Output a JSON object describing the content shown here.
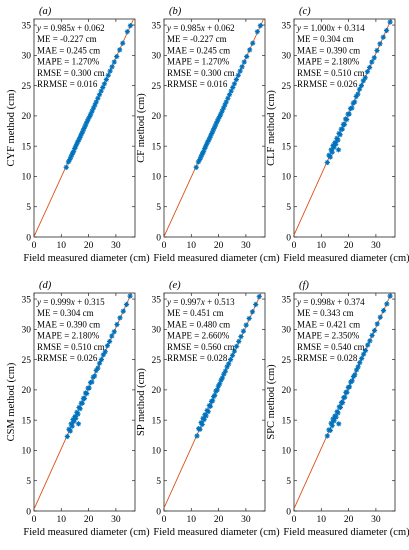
{
  "figure": {
    "axis_color": "#262626",
    "line_color": "#d95319",
    "marker_color": "#0072bd"
  },
  "chart_data": [
    {
      "type": "scatter",
      "panel_label": "(a)",
      "ylabel": "CYF method (cm)",
      "xlabel": "Field measured diameter (cm)",
      "xlim": [
        0,
        37
      ],
      "ylim": [
        0,
        36
      ],
      "xticks": [
        0,
        10,
        20,
        30
      ],
      "yticks": [
        0,
        5,
        10,
        15,
        20,
        25,
        30,
        35
      ],
      "fit": {
        "slope": 0.985,
        "intercept": 0.062
      },
      "stats": [
        "y = 0.985x + 0.062",
        "ME = -0.227 cm",
        "MAE = 0.245 cm",
        "MAPE = 1.270%",
        "RMSE = 0.300 cm",
        "RRMSE = 0.016"
      ],
      "points": [
        [
          11.8,
          11.5
        ],
        [
          12.6,
          12.4
        ],
        [
          13.1,
          12.8
        ],
        [
          13.5,
          13.2
        ],
        [
          13.9,
          13.6
        ],
        [
          14.2,
          13.9
        ],
        [
          14.5,
          14.1
        ],
        [
          14.9,
          14.6
        ],
        [
          15.2,
          14.9
        ],
        [
          15.6,
          15.3
        ],
        [
          16.0,
          15.7
        ],
        [
          16.4,
          16.0
        ],
        [
          16.8,
          16.4
        ],
        [
          17.1,
          16.7
        ],
        [
          17.5,
          17.1
        ],
        [
          17.9,
          17.5
        ],
        [
          18.3,
          17.9
        ],
        [
          18.7,
          18.3
        ],
        [
          19.1,
          18.7
        ],
        [
          19.5,
          19.1
        ],
        [
          19.9,
          19.5
        ],
        [
          20.4,
          19.9
        ],
        [
          20.8,
          20.3
        ],
        [
          21.3,
          20.8
        ],
        [
          21.8,
          21.3
        ],
        [
          22.3,
          21.8
        ],
        [
          22.8,
          22.3
        ],
        [
          23.4,
          22.9
        ],
        [
          24.0,
          23.5
        ],
        [
          24.6,
          24.1
        ],
        [
          25.2,
          24.7
        ],
        [
          25.8,
          25.3
        ],
        [
          26.5,
          26.0
        ],
        [
          27.2,
          26.7
        ],
        [
          27.9,
          27.4
        ],
        [
          28.6,
          28.1
        ],
        [
          29.4,
          28.9
        ],
        [
          30.3,
          29.8
        ],
        [
          31.4,
          30.9
        ],
        [
          32.5,
          32.0
        ],
        [
          34.2,
          33.9
        ],
        [
          35.3,
          34.9
        ]
      ]
    },
    {
      "type": "scatter",
      "panel_label": "(b)",
      "ylabel": "CF method (cm)",
      "xlabel": "Field measured diameter (cm)",
      "xlim": [
        0,
        37
      ],
      "ylim": [
        0,
        36
      ],
      "xticks": [
        0,
        10,
        20,
        30
      ],
      "yticks": [
        0,
        5,
        10,
        15,
        20,
        25,
        30,
        35
      ],
      "fit": {
        "slope": 0.985,
        "intercept": 0.062
      },
      "stats": [
        "y = 0.985x + 0.062",
        "ME = -0.227 cm",
        "MAE = 0.245 cm",
        "MAPE = 1.270%",
        "RMSE = 0.300 cm",
        "RRMSE = 0.016"
      ],
      "points": [
        [
          11.8,
          11.5
        ],
        [
          12.6,
          12.4
        ],
        [
          13.1,
          12.8
        ],
        [
          13.5,
          13.2
        ],
        [
          13.9,
          13.6
        ],
        [
          14.2,
          13.9
        ],
        [
          14.5,
          14.1
        ],
        [
          14.9,
          14.6
        ],
        [
          15.2,
          14.9
        ],
        [
          15.6,
          15.3
        ],
        [
          16.0,
          15.7
        ],
        [
          16.4,
          16.0
        ],
        [
          16.8,
          16.4
        ],
        [
          17.1,
          16.7
        ],
        [
          17.5,
          17.1
        ],
        [
          17.9,
          17.5
        ],
        [
          18.3,
          17.9
        ],
        [
          18.7,
          18.3
        ],
        [
          19.1,
          18.7
        ],
        [
          19.5,
          19.1
        ],
        [
          19.9,
          19.5
        ],
        [
          20.4,
          19.9
        ],
        [
          20.8,
          20.3
        ],
        [
          21.3,
          20.8
        ],
        [
          21.8,
          21.3
        ],
        [
          22.3,
          21.8
        ],
        [
          22.8,
          22.3
        ],
        [
          23.4,
          22.9
        ],
        [
          24.0,
          23.5
        ],
        [
          24.6,
          24.1
        ],
        [
          25.2,
          24.7
        ],
        [
          25.8,
          25.3
        ],
        [
          26.5,
          26.0
        ],
        [
          27.2,
          26.7
        ],
        [
          27.9,
          27.4
        ],
        [
          28.6,
          28.1
        ],
        [
          29.4,
          28.9
        ],
        [
          30.3,
          29.8
        ],
        [
          31.4,
          30.9
        ],
        [
          32.5,
          32.0
        ],
        [
          34.2,
          33.9
        ],
        [
          35.3,
          34.9
        ]
      ]
    },
    {
      "type": "scatter",
      "panel_label": "(c)",
      "ylabel": "CLF method (cm)",
      "xlabel": "Field measured diameter (cm)",
      "xlim": [
        0,
        37
      ],
      "ylim": [
        0,
        36
      ],
      "xticks": [
        0,
        10,
        20,
        30
      ],
      "yticks": [
        0,
        5,
        10,
        15,
        20,
        25,
        30,
        35
      ],
      "fit": {
        "slope": 1.0,
        "intercept": 0.314
      },
      "stats": [
        "y = 1.000x + 0.314",
        "ME = 0.304 cm",
        "MAE = 0.390 cm",
        "MAPE = 2.180%",
        "RMSE = 0.510 cm",
        "RRMSE = 0.026"
      ],
      "points": [
        [
          12.2,
          12.3
        ],
        [
          12.8,
          13.5
        ],
        [
          13.3,
          13.2
        ],
        [
          13.6,
          14.4
        ],
        [
          14.0,
          14.0
        ],
        [
          14.3,
          15.1
        ],
        [
          14.6,
          14.8
        ],
        [
          15.0,
          15.6
        ],
        [
          15.3,
          15.3
        ],
        [
          15.7,
          16.3
        ],
        [
          16.1,
          16.0
        ],
        [
          16.3,
          14.4
        ],
        [
          16.5,
          17.1
        ],
        [
          16.9,
          16.9
        ],
        [
          17.3,
          17.8
        ],
        [
          17.7,
          17.8
        ],
        [
          18.1,
          18.6
        ],
        [
          18.5,
          18.6
        ],
        [
          18.9,
          19.5
        ],
        [
          19.3,
          19.4
        ],
        [
          19.8,
          20.3
        ],
        [
          20.2,
          20.3
        ],
        [
          20.7,
          21.2
        ],
        [
          21.2,
          21.3
        ],
        [
          21.7,
          22.1
        ],
        [
          22.2,
          22.3
        ],
        [
          22.8,
          23.2
        ],
        [
          23.4,
          23.6
        ],
        [
          24.0,
          24.4
        ],
        [
          24.7,
          25.0
        ],
        [
          25.4,
          25.8
        ],
        [
          26.1,
          26.3
        ],
        [
          26.9,
          27.3
        ],
        [
          27.7,
          28.0
        ],
        [
          28.5,
          28.9
        ],
        [
          29.4,
          29.6
        ],
        [
          30.4,
          30.8
        ],
        [
          31.5,
          31.9
        ],
        [
          32.7,
          33.0
        ],
        [
          33.9,
          34.1
        ],
        [
          35.2,
          35.5
        ]
      ]
    },
    {
      "type": "scatter",
      "panel_label": "(d)",
      "ylabel": "CSM method (cm)",
      "xlabel": "Field measured diameter (cm)",
      "xlim": [
        0,
        37
      ],
      "ylim": [
        0,
        36
      ],
      "xticks": [
        0,
        10,
        20,
        30
      ],
      "yticks": [
        0,
        5,
        10,
        15,
        20,
        25,
        30,
        35
      ],
      "fit": {
        "slope": 0.999,
        "intercept": 0.315
      },
      "stats": [
        "y = 0.999x + 0.315",
        "ME = 0.304 cm",
        "MAE = 0.390 cm",
        "MAPE = 2.180%",
        "RMSE = 0.510 cm",
        "RRMSE = 0.026"
      ],
      "points": [
        [
          12.2,
          12.3
        ],
        [
          12.8,
          13.5
        ],
        [
          13.3,
          13.2
        ],
        [
          13.6,
          14.4
        ],
        [
          14.0,
          14.0
        ],
        [
          14.3,
          15.1
        ],
        [
          14.6,
          14.8
        ],
        [
          15.0,
          15.6
        ],
        [
          15.3,
          15.3
        ],
        [
          15.7,
          16.3
        ],
        [
          16.1,
          16.0
        ],
        [
          16.3,
          14.4
        ],
        [
          16.5,
          17.1
        ],
        [
          16.9,
          16.9
        ],
        [
          17.3,
          17.8
        ],
        [
          17.7,
          17.8
        ],
        [
          18.1,
          18.6
        ],
        [
          18.5,
          18.6
        ],
        [
          18.9,
          19.5
        ],
        [
          19.3,
          19.4
        ],
        [
          19.8,
          20.3
        ],
        [
          20.2,
          20.3
        ],
        [
          20.7,
          21.2
        ],
        [
          21.2,
          21.3
        ],
        [
          21.7,
          22.1
        ],
        [
          22.2,
          22.3
        ],
        [
          22.8,
          23.2
        ],
        [
          23.4,
          23.6
        ],
        [
          24.0,
          24.4
        ],
        [
          24.7,
          25.0
        ],
        [
          25.4,
          25.8
        ],
        [
          26.1,
          26.3
        ],
        [
          26.9,
          27.3
        ],
        [
          27.7,
          28.0
        ],
        [
          28.5,
          28.9
        ],
        [
          29.4,
          29.6
        ],
        [
          30.4,
          30.8
        ],
        [
          31.5,
          31.9
        ],
        [
          32.7,
          33.0
        ],
        [
          33.9,
          34.1
        ],
        [
          35.2,
          35.5
        ]
      ]
    },
    {
      "type": "scatter",
      "panel_label": "(e)",
      "ylabel": "SP method (cm)",
      "xlabel": "Field measured diameter (cm)",
      "xlim": [
        0,
        37
      ],
      "ylim": [
        0,
        36
      ],
      "xticks": [
        0,
        10,
        20,
        30
      ],
      "yticks": [
        0,
        5,
        10,
        15,
        20,
        25,
        30,
        35
      ],
      "fit": {
        "slope": 0.997,
        "intercept": 0.513
      },
      "stats": [
        "y = 0.997x + 0.513",
        "ME = 0.451 cm",
        "MAE = 0.480 cm",
        "MAPE = 2.660%",
        "RMSE = 0.560 cm",
        "RRMSE = 0.028"
      ],
      "points": [
        [
          12.1,
          12.4
        ],
        [
          12.7,
          13.6
        ],
        [
          13.2,
          13.5
        ],
        [
          13.6,
          14.6
        ],
        [
          14.0,
          14.3
        ],
        [
          14.3,
          15.3
        ],
        [
          14.7,
          15.1
        ],
        [
          15.0,
          15.9
        ],
        [
          15.4,
          15.7
        ],
        [
          15.8,
          16.6
        ],
        [
          16.2,
          16.4
        ],
        [
          16.6,
          17.4
        ],
        [
          17.0,
          17.3
        ],
        [
          17.4,
          18.1
        ],
        [
          17.8,
          18.2
        ],
        [
          18.2,
          18.9
        ],
        [
          18.6,
          19.1
        ],
        [
          19.0,
          19.8
        ],
        [
          19.5,
          20.0
        ],
        [
          19.9,
          20.6
        ],
        [
          20.4,
          21.0
        ],
        [
          20.9,
          21.6
        ],
        [
          21.4,
          22.0
        ],
        [
          21.9,
          22.6
        ],
        [
          22.5,
          23.1
        ],
        [
          23.1,
          23.8
        ],
        [
          23.7,
          24.3
        ],
        [
          24.4,
          25.0
        ],
        [
          25.1,
          25.7
        ],
        [
          25.8,
          26.4
        ],
        [
          26.6,
          27.2
        ],
        [
          27.4,
          28.0
        ],
        [
          28.2,
          28.8
        ],
        [
          29.1,
          29.7
        ],
        [
          30.1,
          30.7
        ],
        [
          31.2,
          31.8
        ],
        [
          32.4,
          32.9
        ],
        [
          33.6,
          34.1
        ],
        [
          34.9,
          35.4
        ]
      ]
    },
    {
      "type": "scatter",
      "panel_label": "(f)",
      "ylabel": "SPC method (cm)",
      "xlabel": "Field measured diameter (cm)",
      "xlim": [
        0,
        37
      ],
      "ylim": [
        0,
        36
      ],
      "xticks": [
        0,
        10,
        20,
        30
      ],
      "yticks": [
        0,
        5,
        10,
        15,
        20,
        25,
        30,
        35
      ],
      "fit": {
        "slope": 0.998,
        "intercept": 0.374
      },
      "stats": [
        "y = 0.998x + 0.374",
        "ME = 0.343 cm",
        "MAE = 0.421 cm",
        "MAPE = 2.350%",
        "RMSE = 0.540 cm",
        "RRMSE = 0.028"
      ],
      "points": [
        [
          12.2,
          12.4
        ],
        [
          12.8,
          13.4
        ],
        [
          13.3,
          13.3
        ],
        [
          13.6,
          14.5
        ],
        [
          14.0,
          14.1
        ],
        [
          14.3,
          15.2
        ],
        [
          14.7,
          14.9
        ],
        [
          15.0,
          15.7
        ],
        [
          15.4,
          15.5
        ],
        [
          15.8,
          16.4
        ],
        [
          16.1,
          16.2
        ],
        [
          16.4,
          14.4
        ],
        [
          16.6,
          17.2
        ],
        [
          17.0,
          17.1
        ],
        [
          17.4,
          17.9
        ],
        [
          17.8,
          17.9
        ],
        [
          18.2,
          18.7
        ],
        [
          18.6,
          18.8
        ],
        [
          19.0,
          19.6
        ],
        [
          19.4,
          19.6
        ],
        [
          19.9,
          20.4
        ],
        [
          20.3,
          20.5
        ],
        [
          20.8,
          21.3
        ],
        [
          21.3,
          21.5
        ],
        [
          21.8,
          22.2
        ],
        [
          22.3,
          22.5
        ],
        [
          22.9,
          23.3
        ],
        [
          23.5,
          23.8
        ],
        [
          24.1,
          24.5
        ],
        [
          24.8,
          25.2
        ],
        [
          25.5,
          25.9
        ],
        [
          26.2,
          26.5
        ],
        [
          27.0,
          27.4
        ],
        [
          27.8,
          28.1
        ],
        [
          28.6,
          29.0
        ],
        [
          29.5,
          29.8
        ],
        [
          30.5,
          30.9
        ],
        [
          31.6,
          32.0
        ],
        [
          32.8,
          33.1
        ],
        [
          34.0,
          34.2
        ],
        [
          35.2,
          35.5
        ]
      ]
    }
  ]
}
